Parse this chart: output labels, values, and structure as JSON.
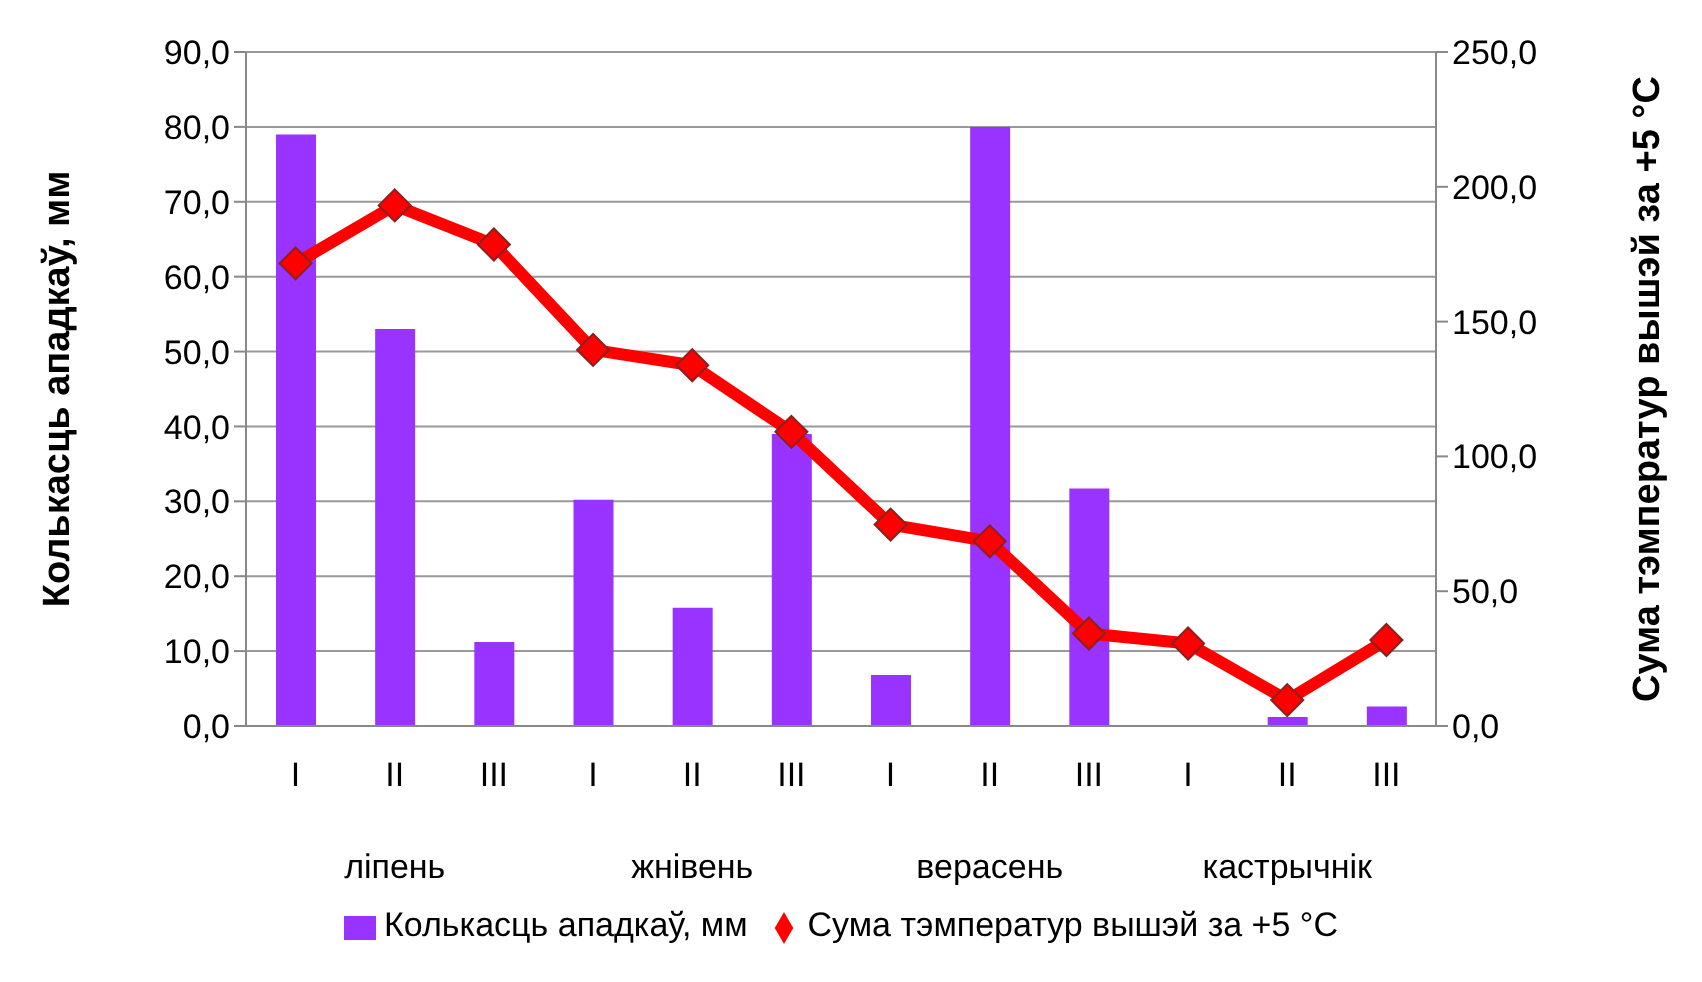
{
  "chart_data": {
    "type": "bar",
    "categories": [
      "I",
      "II",
      "III",
      "I",
      "II",
      "III",
      "I",
      "II",
      "III",
      "I",
      "II",
      "III"
    ],
    "annotations": [
      "ліпень",
      "жнівень",
      "верасень",
      "кастрычнік"
    ],
    "ylabel": "Колькасць ападкаў, мм",
    "y2label": "Сума тэмператур вышэй за +5 °C",
    "series": [
      {
        "name": "Колькасць ападкаў, мм",
        "color": "#9933ff",
        "values": [
          79.0,
          53.0,
          11.2,
          30.2,
          15.8,
          39.0,
          6.8,
          80.0,
          31.7,
          0,
          1.2,
          2.6
        ]
      },
      {
        "name": "Сума тэмператур вышэй за +5 °C",
        "type": "line",
        "axis": "y2",
        "color": "#ff0000",
        "marker": "diamond",
        "values": [
          171.6,
          193.1,
          178.6,
          139.5,
          133.8,
          109.1,
          74.7,
          68.5,
          34.3,
          30.6,
          9.6,
          31.9
        ]
      }
    ],
    "ylim": [
      0,
      90
    ],
    "yticks": [
      {
        "value": 0,
        "label": "0,0"
      },
      {
        "value": 10,
        "label": "10,0"
      },
      {
        "value": 20,
        "label": "20,0"
      },
      {
        "value": 30,
        "label": "30,0"
      },
      {
        "value": 40,
        "label": "40,0"
      },
      {
        "value": 50,
        "label": "50,0"
      },
      {
        "value": 60,
        "label": "60,0"
      },
      {
        "value": 70,
        "label": "70,0"
      },
      {
        "value": 80,
        "label": "80,0"
      },
      {
        "value": 90,
        "label": "90,0"
      }
    ],
    "y2lim": [
      0,
      250
    ],
    "y2ticks": [
      {
        "value": 0,
        "label": "0,0"
      },
      {
        "value": 50,
        "label": "50,0"
      },
      {
        "value": 100,
        "label": "100,0"
      },
      {
        "value": 150,
        "label": "150,0"
      },
      {
        "value": 200,
        "label": "200,0"
      },
      {
        "value": 250,
        "label": "250,0"
      }
    ],
    "grid": "y",
    "legend": "bottom"
  }
}
